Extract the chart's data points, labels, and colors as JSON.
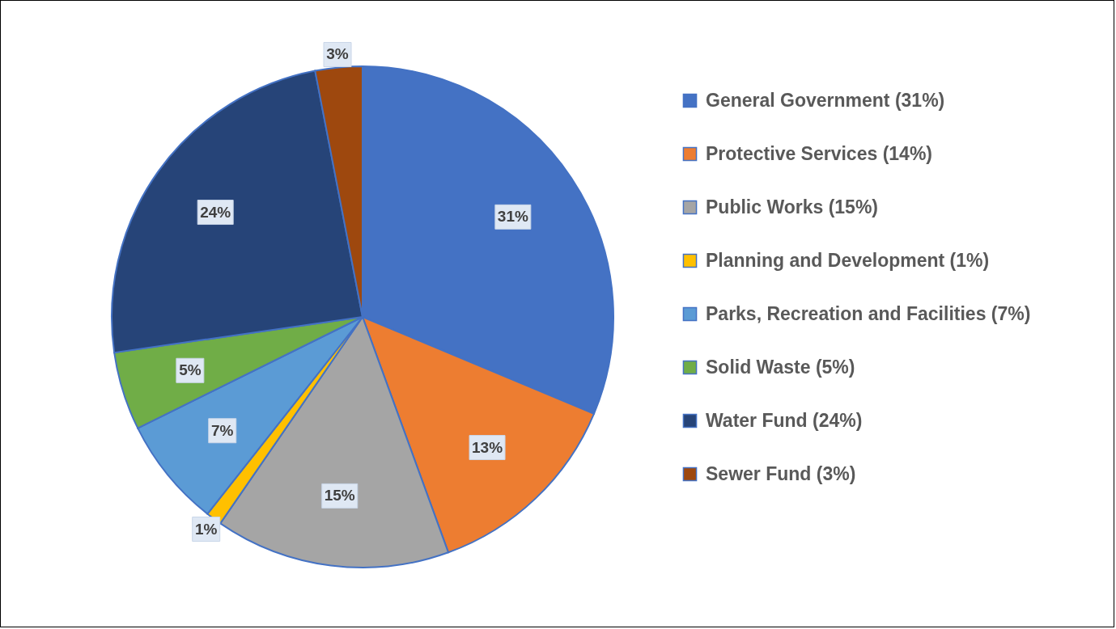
{
  "chart_data": {
    "type": "pie",
    "categories": [
      "General Government (31%)",
      "Protective Services (14%)",
      "Public Works (15%)",
      "Planning and Development (1%)",
      "Parks, Recreation and Facilities (7%)",
      "Solid Waste (5%)",
      "Water Fund (24%)",
      "Sewer Fund (3%)"
    ],
    "values": [
      31,
      13,
      15,
      1,
      7,
      5,
      24,
      3
    ],
    "value_labels": [
      "31%",
      "13%",
      "15%",
      "1%",
      "7%",
      "5%",
      "24%",
      "3%"
    ],
    "colors": [
      "#4472c4",
      "#ed7d31",
      "#a5a5a5",
      "#ffc000",
      "#5b9bd5",
      "#70ad47",
      "#264478",
      "#9e480e"
    ],
    "legend": "right"
  }
}
